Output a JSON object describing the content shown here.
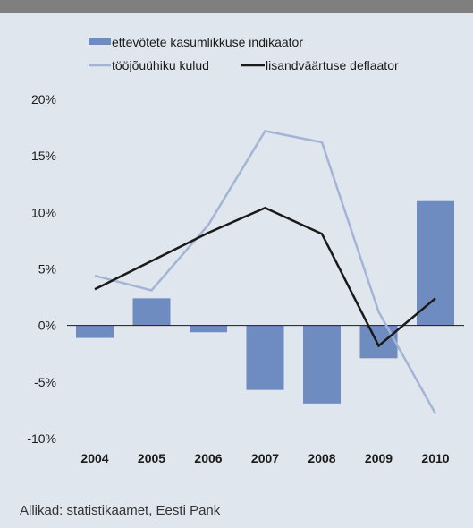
{
  "chart_data": {
    "type": "bar",
    "categories": [
      "2004",
      "2005",
      "2006",
      "2007",
      "2008",
      "2009",
      "2010"
    ],
    "ylim": [
      -10,
      20
    ],
    "yticks": [
      20,
      15,
      10,
      5,
      0,
      -5,
      -10
    ],
    "ytick_labels": [
      "20%",
      "15%",
      "10%",
      "5%",
      "0%",
      "-5%",
      "-10%"
    ],
    "grid": false,
    "legend_position": "top",
    "series": [
      {
        "name": "ettevõtete kasumlikkuse indikaator",
        "type": "bar",
        "color": "#6f8cc1",
        "values": [
          -1.1,
          2.4,
          -0.6,
          -5.7,
          -6.9,
          -2.9,
          11.0
        ]
      },
      {
        "name": "tööjõuühiku kulud",
        "type": "line",
        "color": "#a3b4d6",
        "values": [
          4.4,
          3.1,
          8.9,
          17.2,
          16.2,
          1.2,
          -7.8
        ]
      },
      {
        "name": "lisandväärtuse deflaator",
        "type": "line",
        "color": "#1a1a1a",
        "values": [
          3.2,
          5.7,
          8.2,
          10.4,
          8.1,
          -1.8,
          2.4
        ]
      }
    ]
  },
  "source": "Allikad: statistikaamet, Eesti Pank"
}
